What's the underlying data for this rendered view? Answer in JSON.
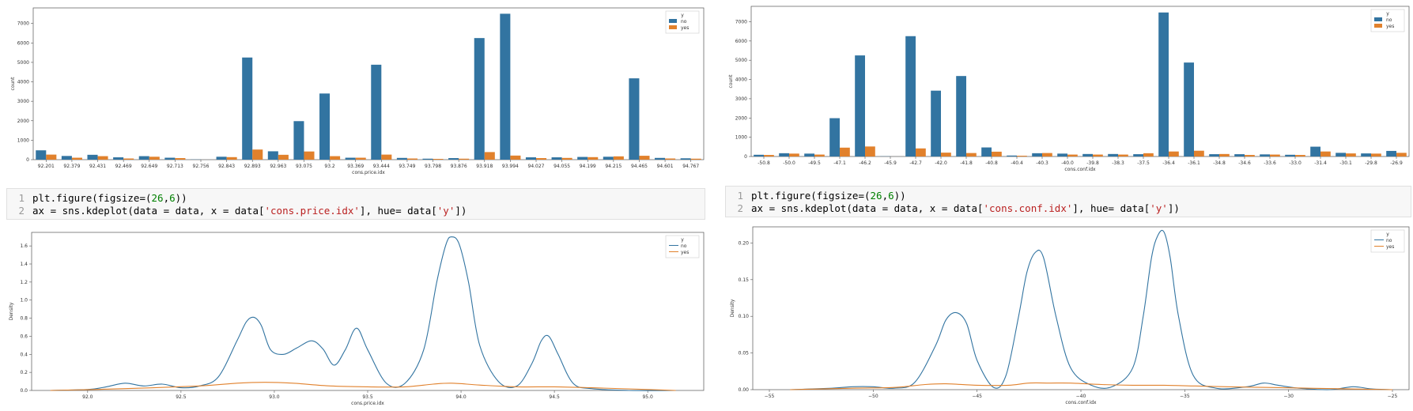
{
  "colors": {
    "no": "#3274a1",
    "yes": "#e1812c",
    "code_bg": "#f7f7f7"
  },
  "code_cells": [
    {
      "lines": [
        {
          "num": "1",
          "text": "plt.figure(figsize=(26,6))"
        },
        {
          "num": "2",
          "text": "ax = sns.kdeplot(data = data, x = data['cons.price.idx'], hue= data['y'])"
        }
      ]
    },
    {
      "lines": [
        {
          "num": "1",
          "text": "plt.figure(figsize=(26,6))"
        },
        {
          "num": "2",
          "text": "ax = sns.kdeplot(data = data, x = data['cons.conf.idx'], hue= data['y'])"
        }
      ]
    }
  ],
  "chart_data": [
    {
      "type": "bar",
      "xlabel": "cons.price.idx",
      "ylabel": "count",
      "ylim": [
        0,
        7800
      ],
      "yticks": [
        0,
        1000,
        2000,
        3000,
        4000,
        5000,
        6000,
        7000
      ],
      "legend": {
        "title": "y",
        "placement": "top-right"
      },
      "categories": [
        "92.201",
        "92.379",
        "92.431",
        "92.469",
        "92.649",
        "92.713",
        "92.756",
        "92.843",
        "92.893",
        "92.963",
        "93.075",
        "93.2",
        "93.369",
        "93.444",
        "93.749",
        "93.798",
        "93.876",
        "93.918",
        "93.994",
        "94.027",
        "94.055",
        "94.199",
        "94.215",
        "94.465",
        "94.601",
        "94.767"
      ],
      "series": [
        {
          "name": "no",
          "values": [
            480,
            190,
            250,
            120,
            180,
            100,
            10,
            150,
            5250,
            430,
            1980,
            3400,
            100,
            4880,
            90,
            50,
            80,
            6250,
            7500,
            120,
            120,
            140,
            150,
            4180,
            90,
            70
          ]
        },
        {
          "name": "yes",
          "values": [
            260,
            100,
            180,
            60,
            150,
            80,
            0,
            130,
            520,
            250,
            420,
            180,
            100,
            260,
            60,
            40,
            50,
            390,
            210,
            80,
            90,
            130,
            170,
            200,
            60,
            50
          ]
        }
      ]
    },
    {
      "type": "bar",
      "xlabel": "cons.conf.idx",
      "ylabel": "count",
      "ylim": [
        0,
        7800
      ],
      "yticks": [
        0,
        1000,
        2000,
        3000,
        4000,
        5000,
        6000,
        7000
      ],
      "legend": {
        "title": "y",
        "placement": "top-right"
      },
      "categories": [
        "-50.8",
        "-50.0",
        "-49.5",
        "-47.1",
        "-46.2",
        "-45.9",
        "-42.7",
        "-42.0",
        "-41.8",
        "-40.8",
        "-40.4",
        "-40.3",
        "-40.0",
        "-39.8",
        "-38.3",
        "-37.5",
        "-36.4",
        "-36.1",
        "-34.8",
        "-34.6",
        "-33.6",
        "-33.0",
        "-31.4",
        "-30.1",
        "-29.8",
        "-26.9"
      ],
      "series": [
        {
          "name": "no",
          "values": [
            90,
            170,
            150,
            1990,
            5250,
            10,
            6250,
            3420,
            4180,
            470,
            50,
            170,
            150,
            130,
            130,
            120,
            7480,
            4880,
            120,
            120,
            110,
            90,
            510,
            190,
            160,
            290
          ]
        },
        {
          "name": "yes",
          "values": [
            80,
            150,
            100,
            460,
            520,
            0,
            420,
            200,
            180,
            250,
            40,
            180,
            100,
            100,
            100,
            170,
            260,
            300,
            130,
            80,
            100,
            80,
            260,
            160,
            150,
            190
          ]
        }
      ]
    },
    {
      "type": "line",
      "xlabel": "cons.price.idx",
      "ylabel": "Density",
      "xlim": [
        91.7,
        95.3
      ],
      "ylim": [
        0,
        1.75
      ],
      "xticks": [
        92.0,
        92.5,
        93.0,
        93.5,
        94.0,
        94.5,
        95.0
      ],
      "xtick_labels": [
        "92.0",
        "92.5",
        "93.0",
        "93.5",
        "94.0",
        "94.5",
        "95.0"
      ],
      "yticks": [
        0.0,
        0.2,
        0.4,
        0.6,
        0.8,
        1.0,
        1.2,
        1.4,
        1.6
      ],
      "ytick_labels": [
        "0.0",
        "0.2",
        "0.4",
        "0.6",
        "0.8",
        "1.0",
        "1.2",
        "1.4",
        "1.6"
      ],
      "legend": {
        "title": "y",
        "placement": "top-right"
      },
      "series": [
        {
          "name": "no",
          "x": [
            91.8,
            92.0,
            92.1,
            92.2,
            92.3,
            92.4,
            92.5,
            92.6,
            92.7,
            92.8,
            92.85,
            92.89,
            92.93,
            92.98,
            93.05,
            93.12,
            93.2,
            93.26,
            93.32,
            93.38,
            93.44,
            93.5,
            93.6,
            93.7,
            93.8,
            93.87,
            93.92,
            93.95,
            93.99,
            94.04,
            94.1,
            94.2,
            94.3,
            94.38,
            94.43,
            94.47,
            94.52,
            94.6,
            94.7,
            94.9,
            95.15
          ],
          "y": [
            0.0,
            0.01,
            0.04,
            0.08,
            0.05,
            0.07,
            0.03,
            0.05,
            0.15,
            0.55,
            0.76,
            0.81,
            0.72,
            0.45,
            0.4,
            0.47,
            0.55,
            0.46,
            0.28,
            0.45,
            0.69,
            0.45,
            0.08,
            0.08,
            0.45,
            1.2,
            1.62,
            1.7,
            1.62,
            1.2,
            0.5,
            0.1,
            0.05,
            0.3,
            0.55,
            0.6,
            0.4,
            0.08,
            0.02,
            0.0,
            0.0
          ]
        },
        {
          "name": "yes",
          "x": [
            91.8,
            92.2,
            92.6,
            92.8,
            92.95,
            93.1,
            93.3,
            93.5,
            93.7,
            93.85,
            93.95,
            94.1,
            94.3,
            94.5,
            94.7,
            95.0,
            95.15
          ],
          "y": [
            0.0,
            0.02,
            0.05,
            0.08,
            0.09,
            0.08,
            0.05,
            0.04,
            0.04,
            0.07,
            0.08,
            0.06,
            0.04,
            0.04,
            0.03,
            0.01,
            0.0
          ]
        }
      ]
    },
    {
      "type": "line",
      "xlabel": "cons.conf.idx",
      "ylabel": "Density",
      "xlim": [
        -55.8,
        -24.2
      ],
      "ylim": [
        0,
        0.222
      ],
      "xticks": [
        -55,
        -50,
        -45,
        -40,
        -35,
        -30,
        -25
      ],
      "xtick_labels": [
        "−55",
        "−50",
        "−45",
        "−40",
        "−35",
        "−30",
        "−25"
      ],
      "yticks": [
        0.0,
        0.05,
        0.1,
        0.15,
        0.2
      ],
      "ytick_labels": [
        "0.00",
        "0.05",
        "0.10",
        "0.15",
        "0.20"
      ],
      "legend": {
        "title": "y",
        "placement": "top-right"
      },
      "series": [
        {
          "name": "no",
          "x": [
            -54.0,
            -52.0,
            -51.0,
            -50.0,
            -49.0,
            -48.0,
            -47.0,
            -46.5,
            -46.0,
            -45.5,
            -45.0,
            -44.2,
            -43.6,
            -43.0,
            -42.6,
            -42.2,
            -41.8,
            -41.2,
            -40.5,
            -39.5,
            -38.5,
            -37.5,
            -37.0,
            -36.6,
            -36.3,
            -36.0,
            -35.7,
            -35.3,
            -34.6,
            -33.5,
            -32.0,
            -31.2,
            -30.5,
            -29.5,
            -28.0,
            -26.9,
            -26.0,
            -25.0
          ],
          "y": [
            0.0,
            0.002,
            0.004,
            0.004,
            0.002,
            0.01,
            0.06,
            0.095,
            0.105,
            0.09,
            0.04,
            0.003,
            0.02,
            0.1,
            0.16,
            0.187,
            0.18,
            0.1,
            0.03,
            0.006,
            0.004,
            0.03,
            0.1,
            0.18,
            0.21,
            0.215,
            0.18,
            0.1,
            0.02,
            0.002,
            0.004,
            0.009,
            0.006,
            0.002,
            0.0,
            0.004,
            0.001,
            0.0
          ]
        },
        {
          "name": "yes",
          "x": [
            -54.0,
            -51.0,
            -49.0,
            -47.5,
            -46.5,
            -45.0,
            -43.5,
            -42.5,
            -41.5,
            -40.5,
            -39.0,
            -37.5,
            -36.0,
            -34.5,
            -33.0,
            -31.0,
            -29.0,
            -27.0,
            -25.0
          ],
          "y": [
            0.0,
            0.002,
            0.003,
            0.007,
            0.008,
            0.006,
            0.006,
            0.009,
            0.009,
            0.009,
            0.007,
            0.006,
            0.006,
            0.005,
            0.004,
            0.003,
            0.002,
            0.001,
            0.0
          ]
        }
      ]
    }
  ]
}
